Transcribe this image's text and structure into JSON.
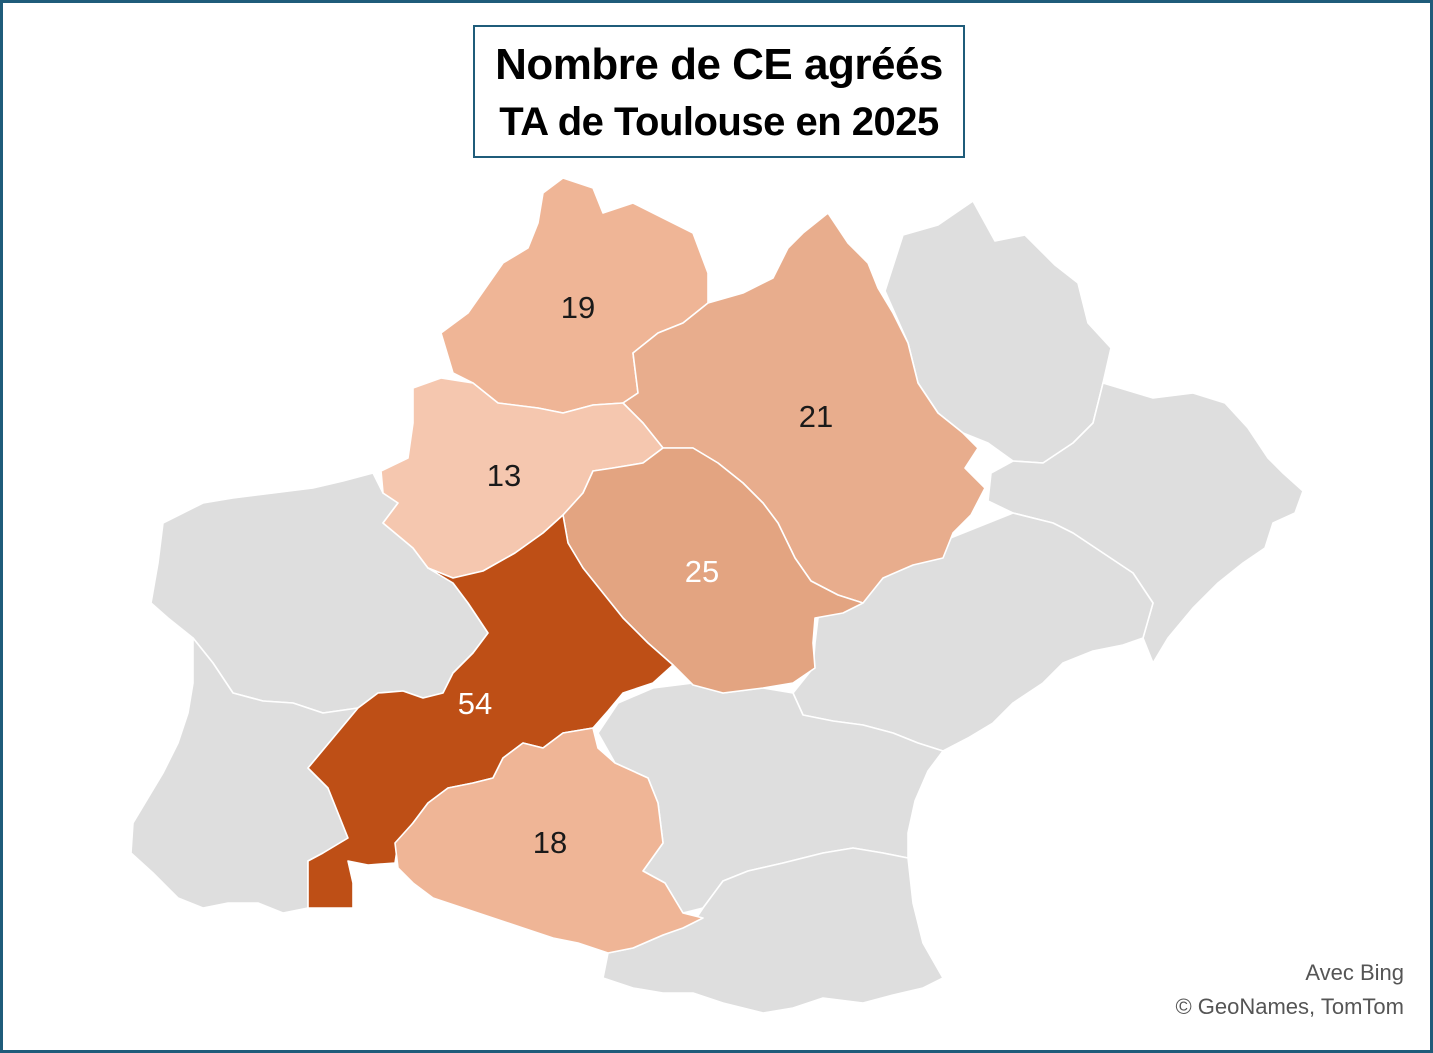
{
  "title": {
    "line1": "Nombre de CE agréés",
    "line2": "TA de Toulouse en 2025"
  },
  "map": {
    "highlighted_departments": [
      {
        "id": "dept-lot",
        "value": "19",
        "color": "#efb596",
        "label_color": "#1a1a1a"
      },
      {
        "id": "dept-aveyron",
        "value": "21",
        "color": "#e8ad8d",
        "label_color": "#1a1a1a"
      },
      {
        "id": "dept-tarn-et-garonne",
        "value": "13",
        "color": "#f5c7af",
        "label_color": "#1a1a1a"
      },
      {
        "id": "dept-tarn",
        "value": "25",
        "color": "#e3a481",
        "label_color": "#ffffff"
      },
      {
        "id": "dept-haute-garonne",
        "value": "54",
        "color": "#be4f16",
        "label_color": "#ffffff"
      },
      {
        "id": "dept-ariege",
        "value": "18",
        "color": "#efb596",
        "label_color": "#1a1a1a"
      }
    ],
    "other_regions_color": "#dedede",
    "border_color": "#ffffff"
  },
  "frame_color": "#1f5c7a",
  "attribution": {
    "line1": "Avec Bing",
    "line2": "© GeoNames, TomTom"
  }
}
